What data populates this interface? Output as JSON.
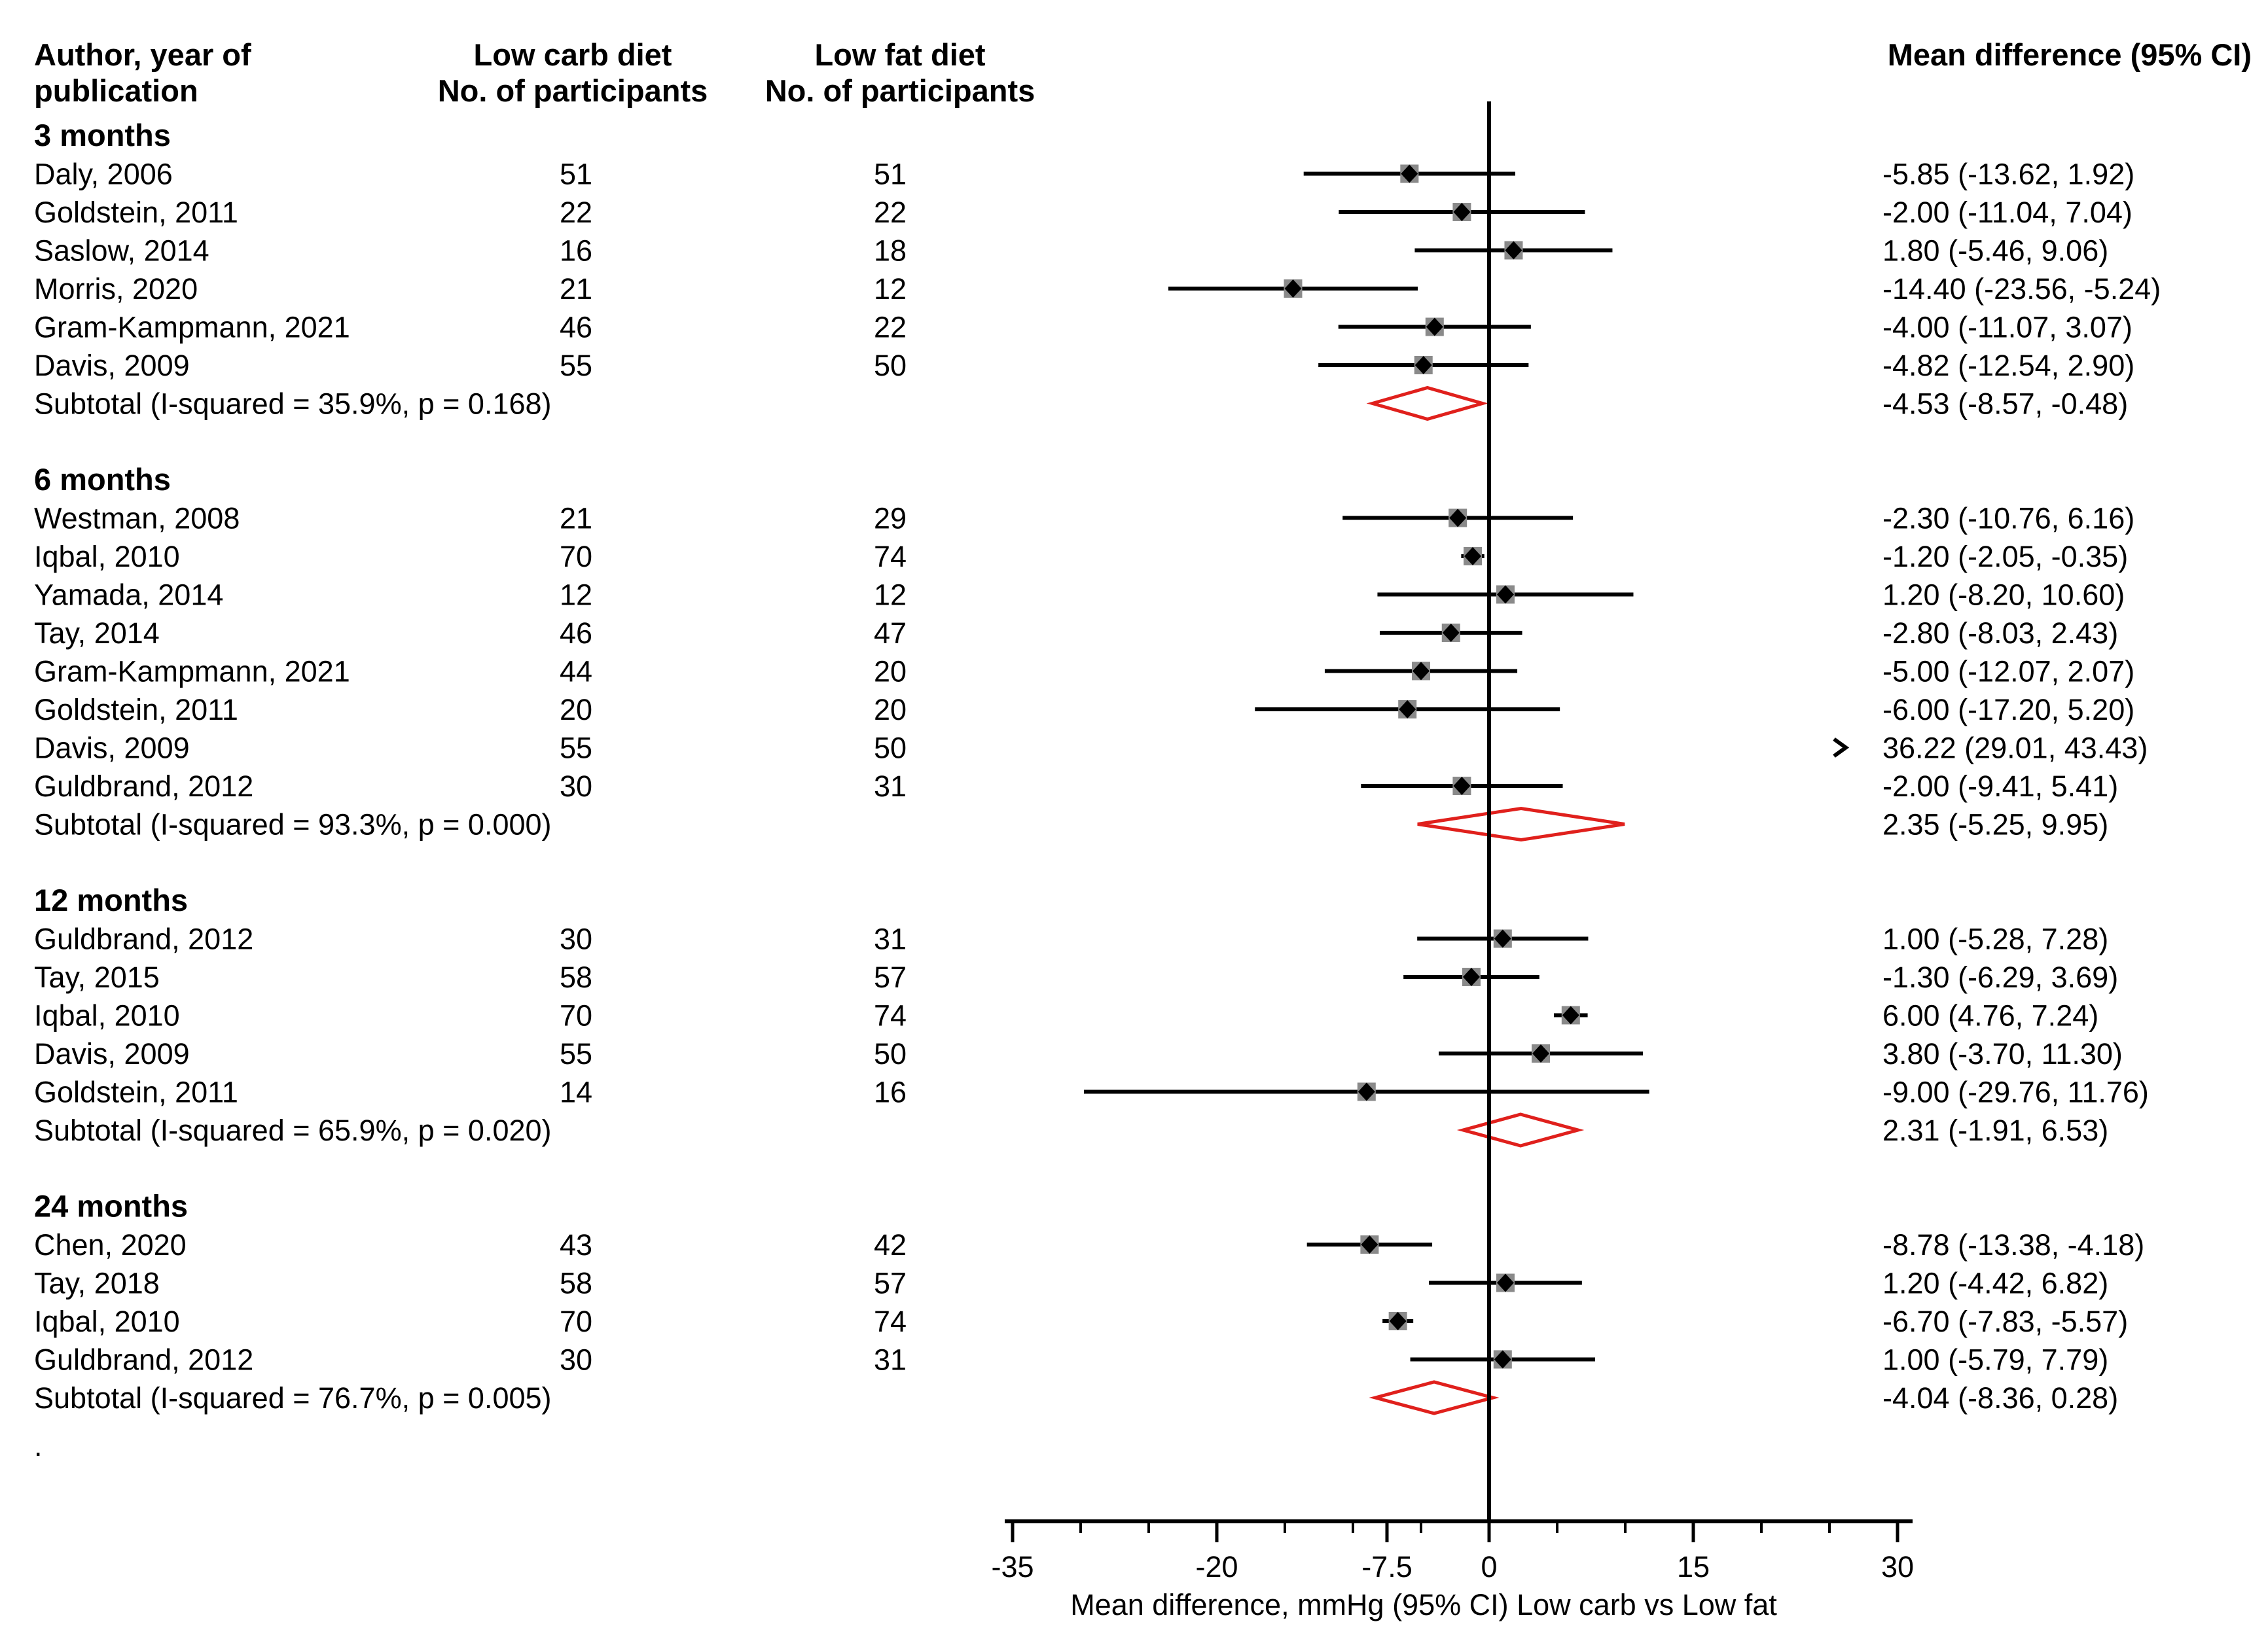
{
  "headers": {
    "author_line1": "Author, year of",
    "author_line2": "publication",
    "lowcarb_line1": "Low carb diet",
    "lowcarb_line2": "No. of participants",
    "lowfat_line1": "Low fat diet",
    "lowfat_line2": "No. of participants",
    "md": "Mean difference (95% CI)"
  },
  "footnote": ".",
  "chart_data": {
    "type": "forest",
    "xlabel": "Mean difference, mmHg (95% CI) Low carb vs Low fat",
    "xlim": [
      -35,
      30
    ],
    "x_ticks": [
      -35,
      -20,
      -7.5,
      0,
      15,
      30
    ],
    "x_tick_labels": [
      "-35",
      "-20",
      "-7.5",
      "0",
      "15",
      "30"
    ],
    "reference_line": 0,
    "groups": [
      {
        "label": "3 months",
        "studies": [
          {
            "author": "Daly, 2006",
            "n_lowcarb": "51",
            "n_lowfat": "51",
            "md": -5.85,
            "lo": -13.62,
            "hi": 1.92,
            "md_text": "-5.85 (-13.62, 1.92)"
          },
          {
            "author": "Goldstein, 2011",
            "n_lowcarb": "22",
            "n_lowfat": "22",
            "md": -2.0,
            "lo": -11.04,
            "hi": 7.04,
            "md_text": "-2.00 (-11.04, 7.04)"
          },
          {
            "author": "Saslow, 2014",
            "n_lowcarb": "16",
            "n_lowfat": "18",
            "md": 1.8,
            "lo": -5.46,
            "hi": 9.06,
            "md_text": "1.80 (-5.46, 9.06)"
          },
          {
            "author": "Morris, 2020",
            "n_lowcarb": "21",
            "n_lowfat": "12",
            "md": -14.4,
            "lo": -23.56,
            "hi": -5.24,
            "md_text": "-14.40 (-23.56, -5.24)"
          },
          {
            "author": "Gram-Kampmann, 2021",
            "n_lowcarb": "46",
            "n_lowfat": "22",
            "md": -4.0,
            "lo": -11.07,
            "hi": 3.07,
            "md_text": "-4.00 (-11.07, 3.07)"
          },
          {
            "author": "Davis, 2009",
            "n_lowcarb": "55",
            "n_lowfat": "50",
            "md": -4.82,
            "lo": -12.54,
            "hi": 2.9,
            "md_text": "-4.82 (-12.54, 2.90)"
          }
        ],
        "subtotal": {
          "label": "Subtotal (I-squared = 35.9%, p = 0.168)",
          "md": -4.53,
          "lo": -8.57,
          "hi": -0.48,
          "md_text": "-4.53 (-8.57, -0.48)"
        }
      },
      {
        "label": "6 months",
        "studies": [
          {
            "author": "Westman, 2008",
            "n_lowcarb": "21",
            "n_lowfat": "29",
            "md": -2.3,
            "lo": -10.76,
            "hi": 6.16,
            "md_text": "-2.30 (-10.76, 6.16)"
          },
          {
            "author": "Iqbal, 2010",
            "n_lowcarb": "70",
            "n_lowfat": "74",
            "md": -1.2,
            "lo": -2.05,
            "hi": -0.35,
            "md_text": "-1.20 (-2.05, -0.35)"
          },
          {
            "author": "Yamada, 2014",
            "n_lowcarb": "12",
            "n_lowfat": "12",
            "md": 1.2,
            "lo": -8.2,
            "hi": 10.6,
            "md_text": "1.20 (-8.20, 10.60)"
          },
          {
            "author": "Tay, 2014",
            "n_lowcarb": "46",
            "n_lowfat": "47",
            "md": -2.8,
            "lo": -8.03,
            "hi": 2.43,
            "md_text": "-2.80 (-8.03, 2.43)"
          },
          {
            "author": "Gram-Kampmann, 2021",
            "n_lowcarb": "44",
            "n_lowfat": "20",
            "md": -5.0,
            "lo": -12.07,
            "hi": 2.07,
            "md_text": "-5.00 (-12.07, 2.07)"
          },
          {
            "author": "Goldstein, 2011",
            "n_lowcarb": "20",
            "n_lowfat": "20",
            "md": -6.0,
            "lo": -17.2,
            "hi": 5.2,
            "md_text": "-6.00 (-17.20, 5.20)"
          },
          {
            "author": "Davis, 2009",
            "n_lowcarb": "55",
            "n_lowfat": "50",
            "md": 36.22,
            "lo": 29.01,
            "hi": 43.43,
            "md_text": "36.22 (29.01, 43.43)",
            "off_scale": true
          },
          {
            "author": "Guldbrand, 2012",
            "n_lowcarb": "30",
            "n_lowfat": "31",
            "md": -2.0,
            "lo": -9.41,
            "hi": 5.41,
            "md_text": "-2.00 (-9.41, 5.41)"
          }
        ],
        "subtotal": {
          "label": "Subtotal (I-squared = 93.3%, p = 0.000)",
          "md": 2.35,
          "lo": -5.25,
          "hi": 9.95,
          "md_text": "2.35 (-5.25, 9.95)"
        }
      },
      {
        "label": "12 months",
        "studies": [
          {
            "author": "Guldbrand, 2012",
            "n_lowcarb": "30",
            "n_lowfat": "31",
            "md": 1.0,
            "lo": -5.28,
            "hi": 7.28,
            "md_text": "1.00 (-5.28, 7.28)"
          },
          {
            "author": "Tay, 2015",
            "n_lowcarb": "58",
            "n_lowfat": "57",
            "md": -1.3,
            "lo": -6.29,
            "hi": 3.69,
            "md_text": "-1.30 (-6.29, 3.69)"
          },
          {
            "author": "Iqbal, 2010",
            "n_lowcarb": "70",
            "n_lowfat": "74",
            "md": 6.0,
            "lo": 4.76,
            "hi": 7.24,
            "md_text": "6.00 (4.76, 7.24)"
          },
          {
            "author": "Davis, 2009",
            "n_lowcarb": "55",
            "n_lowfat": "50",
            "md": 3.8,
            "lo": -3.7,
            "hi": 11.3,
            "md_text": "3.80 (-3.70, 11.30)"
          },
          {
            "author": "Goldstein, 2011",
            "n_lowcarb": "14",
            "n_lowfat": "16",
            "md": -9.0,
            "lo": -29.76,
            "hi": 11.76,
            "md_text": "-9.00 (-29.76, 11.76)"
          }
        ],
        "subtotal": {
          "label": "Subtotal (I-squared = 65.9%, p = 0.020)",
          "md": 2.31,
          "lo": -1.91,
          "hi": 6.53,
          "md_text": "2.31 (-1.91, 6.53)"
        }
      },
      {
        "label": "24 months",
        "studies": [
          {
            "author": "Chen, 2020",
            "n_lowcarb": "43",
            "n_lowfat": "42",
            "md": -8.78,
            "lo": -13.38,
            "hi": -4.18,
            "md_text": "-8.78 (-13.38, -4.18)"
          },
          {
            "author": "Tay, 2018",
            "n_lowcarb": "58",
            "n_lowfat": "57",
            "md": 1.2,
            "lo": -4.42,
            "hi": 6.82,
            "md_text": "1.20 (-4.42, 6.82)"
          },
          {
            "author": "Iqbal, 2010",
            "n_lowcarb": "70",
            "n_lowfat": "74",
            "md": -6.7,
            "lo": -7.83,
            "hi": -5.57,
            "md_text": "-6.70 (-7.83, -5.57)"
          },
          {
            "author": "Guldbrand, 2012",
            "n_lowcarb": "30",
            "n_lowfat": "31",
            "md": 1.0,
            "lo": -5.79,
            "hi": 7.79,
            "md_text": "1.00 (-5.79, 7.79)"
          }
        ],
        "subtotal": {
          "label": "Subtotal (I-squared = 76.7%, p = 0.005)",
          "md": -4.04,
          "lo": -8.36,
          "hi": 0.28,
          "md_text": "-4.04 (-8.36, 0.28)"
        }
      }
    ]
  }
}
